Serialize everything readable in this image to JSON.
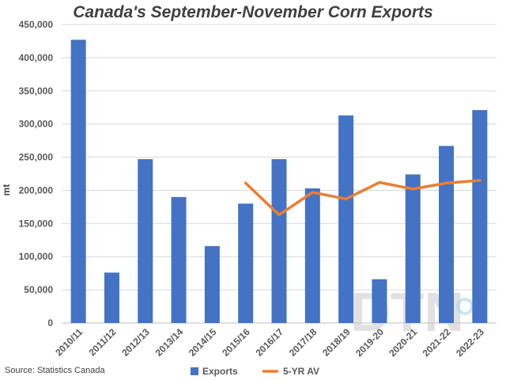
{
  "chart_data": {
    "type": "bar",
    "title": "Canada's September-November Corn Exports",
    "ylabel": "mt",
    "xlabel": "",
    "ylim": [
      0,
      450000
    ],
    "yticks": [
      0,
      50000,
      100000,
      150000,
      200000,
      250000,
      300000,
      350000,
      400000,
      450000
    ],
    "ytick_labels": [
      "0",
      "50,000",
      "100,000",
      "150,000",
      "200,000",
      "250,000",
      "300,000",
      "350,000",
      "400,000",
      "450,000"
    ],
    "grid": true,
    "legend_position": "bottom",
    "categories": [
      "2010/11",
      "2011/12",
      "2012/13",
      "2013/14",
      "2014/15",
      "2015/16",
      "2016/17",
      "2017/18",
      "2018/19",
      "2019-20",
      "2020-21",
      "2021-22",
      "2022-23"
    ],
    "series": [
      {
        "name": "Exports",
        "type": "bar",
        "color": "#4472c4",
        "values": [
          427000,
          76000,
          247000,
          190000,
          116000,
          180000,
          247000,
          203000,
          313000,
          66000,
          224000,
          267000,
          321000
        ]
      },
      {
        "name": "5-YR AV",
        "type": "line",
        "color": "#ed7d31",
        "values": [
          null,
          null,
          null,
          null,
          null,
          211000,
          163000,
          197000,
          187000,
          212000,
          202000,
          211000,
          215000
        ]
      }
    ],
    "source": "Source: Statistics Canada",
    "watermark": "DTN"
  }
}
